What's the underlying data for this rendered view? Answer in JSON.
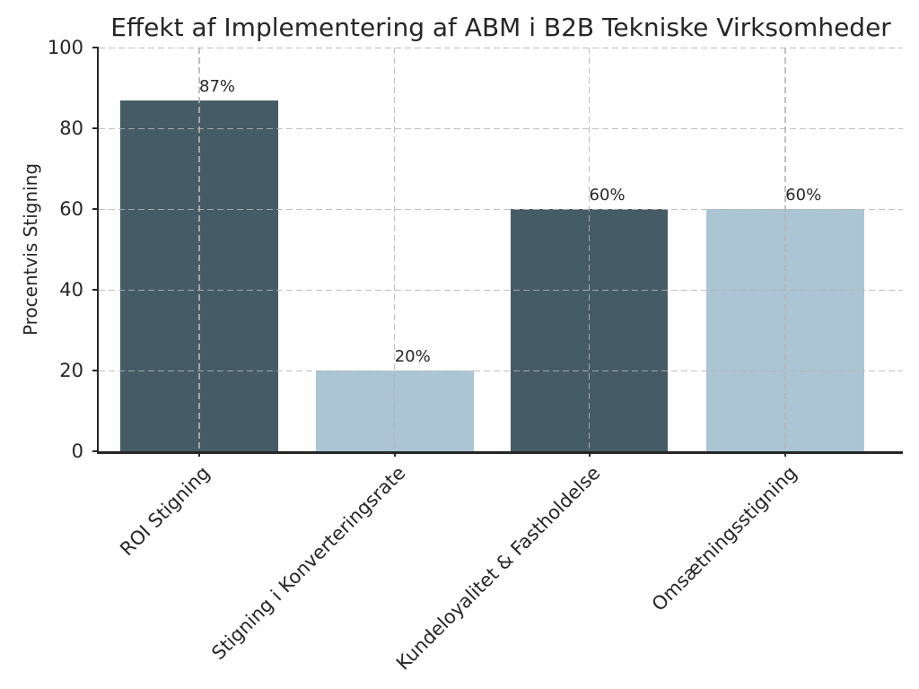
{
  "chart_data": {
    "type": "bar",
    "title": "Effekt af Implementering af ABM i B2B Tekniske Virksomheder",
    "ylabel": "Procentvis Stigning",
    "xlabel": "",
    "ylim": [
      0,
      100
    ],
    "yticks": [
      0,
      20,
      40,
      60,
      80,
      100
    ],
    "categories": [
      "ROI Stigning",
      "Stigning i Konverteringsrate",
      "Kundeloyalitet & Fastholdelse",
      "Omsætningsstigning"
    ],
    "values": [
      87,
      20,
      60,
      60
    ],
    "value_labels": [
      "87%",
      "20%",
      "60%",
      "60%"
    ],
    "bar_colors": [
      "#455c66",
      "#abc5d4",
      "#455c66",
      "#abc5d4"
    ],
    "grid": {
      "visible": true,
      "linestyle": "dashed",
      "axes": "both",
      "above_bars": true
    },
    "layout": {
      "bar_centers_pct": [
        12.5,
        36.8,
        61.0,
        85.4
      ],
      "bar_width_pct": 19.6,
      "x_tick_rotation_deg": 45
    }
  },
  "colors": {
    "text": "#262626",
    "spine": "#262626",
    "grid": "#b4b4b4",
    "bar_dark": "#455c66",
    "bar_light": "#abc5d4",
    "background": "#ffffff"
  }
}
